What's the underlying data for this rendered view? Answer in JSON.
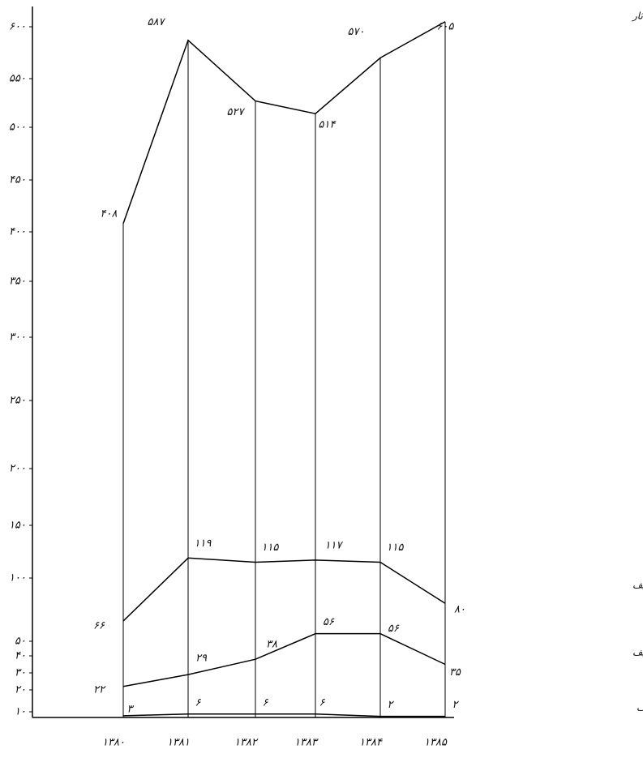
{
  "chart_data": {
    "type": "line",
    "categories": [
      "۱۳۸۰",
      "۱۳۸۱",
      "۱۳۸۲",
      "۱۳۸۳",
      "۱۳۸۴",
      "۱۳۸۵"
    ],
    "ylim": [
      0,
      620
    ],
    "yticks": [
      {
        "value": 10,
        "label": "۱۰"
      },
      {
        "value": 20,
        "label": "۲۰"
      },
      {
        "value": 30,
        "label": "۳۰"
      },
      {
        "value": 40,
        "label": "۴۰"
      },
      {
        "value": 50,
        "label": "۵۰"
      },
      {
        "value": 100,
        "label": "۱۰۰"
      },
      {
        "value": 150,
        "label": "۱۵۰"
      },
      {
        "value": 200,
        "label": "۲۰۰"
      },
      {
        "value": 250,
        "label": "۲۵۰"
      },
      {
        "value": 300,
        "label": "۳۰۰"
      },
      {
        "value": 350,
        "label": "۳۵۰"
      },
      {
        "value": 400,
        "label": "۴۰۰"
      },
      {
        "value": 450,
        "label": "۴۵۰"
      },
      {
        "value": 500,
        "label": "۵۰۰"
      },
      {
        "value": 550,
        "label": "۵۵۰"
      },
      {
        "value": 600,
        "label": "۶۰۰"
      }
    ],
    "series": [
      {
        "name": "تعداد کل آثار",
        "color": "#000000",
        "values": [
          408,
          587,
          527,
          514,
          570,
          605
        ],
        "value_labels": [
          "۴۰۸",
          "۵۸۷",
          "۵۲۷",
          "۵۱۴",
          "۵۷۰",
          "۶۰۵"
        ]
      },
      {
        "name": "تعداد کل داستان تالیف",
        "color": "#000000",
        "values": [
          66,
          119,
          115,
          117,
          115,
          80
        ],
        "value_labels": [
          "۶۶",
          "۱۱۹",
          "۱۱۵",
          "۱۱۷",
          "۱۱۵",
          "۸۰"
        ]
      },
      {
        "name": "آثار خوب حوزه ی داستان تالیف",
        "color": "#000000",
        "values": [
          22,
          29,
          38,
          56,
          56,
          35
        ],
        "value_labels": [
          "۲۲",
          "۲۹",
          "۳۸",
          "۵۶",
          "۵۶",
          "۳۵"
        ]
      },
      {
        "name": "آثار برگزیده در حوزه ی داستان تالیف",
        "color": "#000000",
        "values": [
          3,
          6,
          6,
          6,
          2,
          2
        ],
        "value_labels": [
          "۳",
          "۶",
          "۶",
          "۶",
          "۲",
          "۲"
        ]
      }
    ]
  }
}
